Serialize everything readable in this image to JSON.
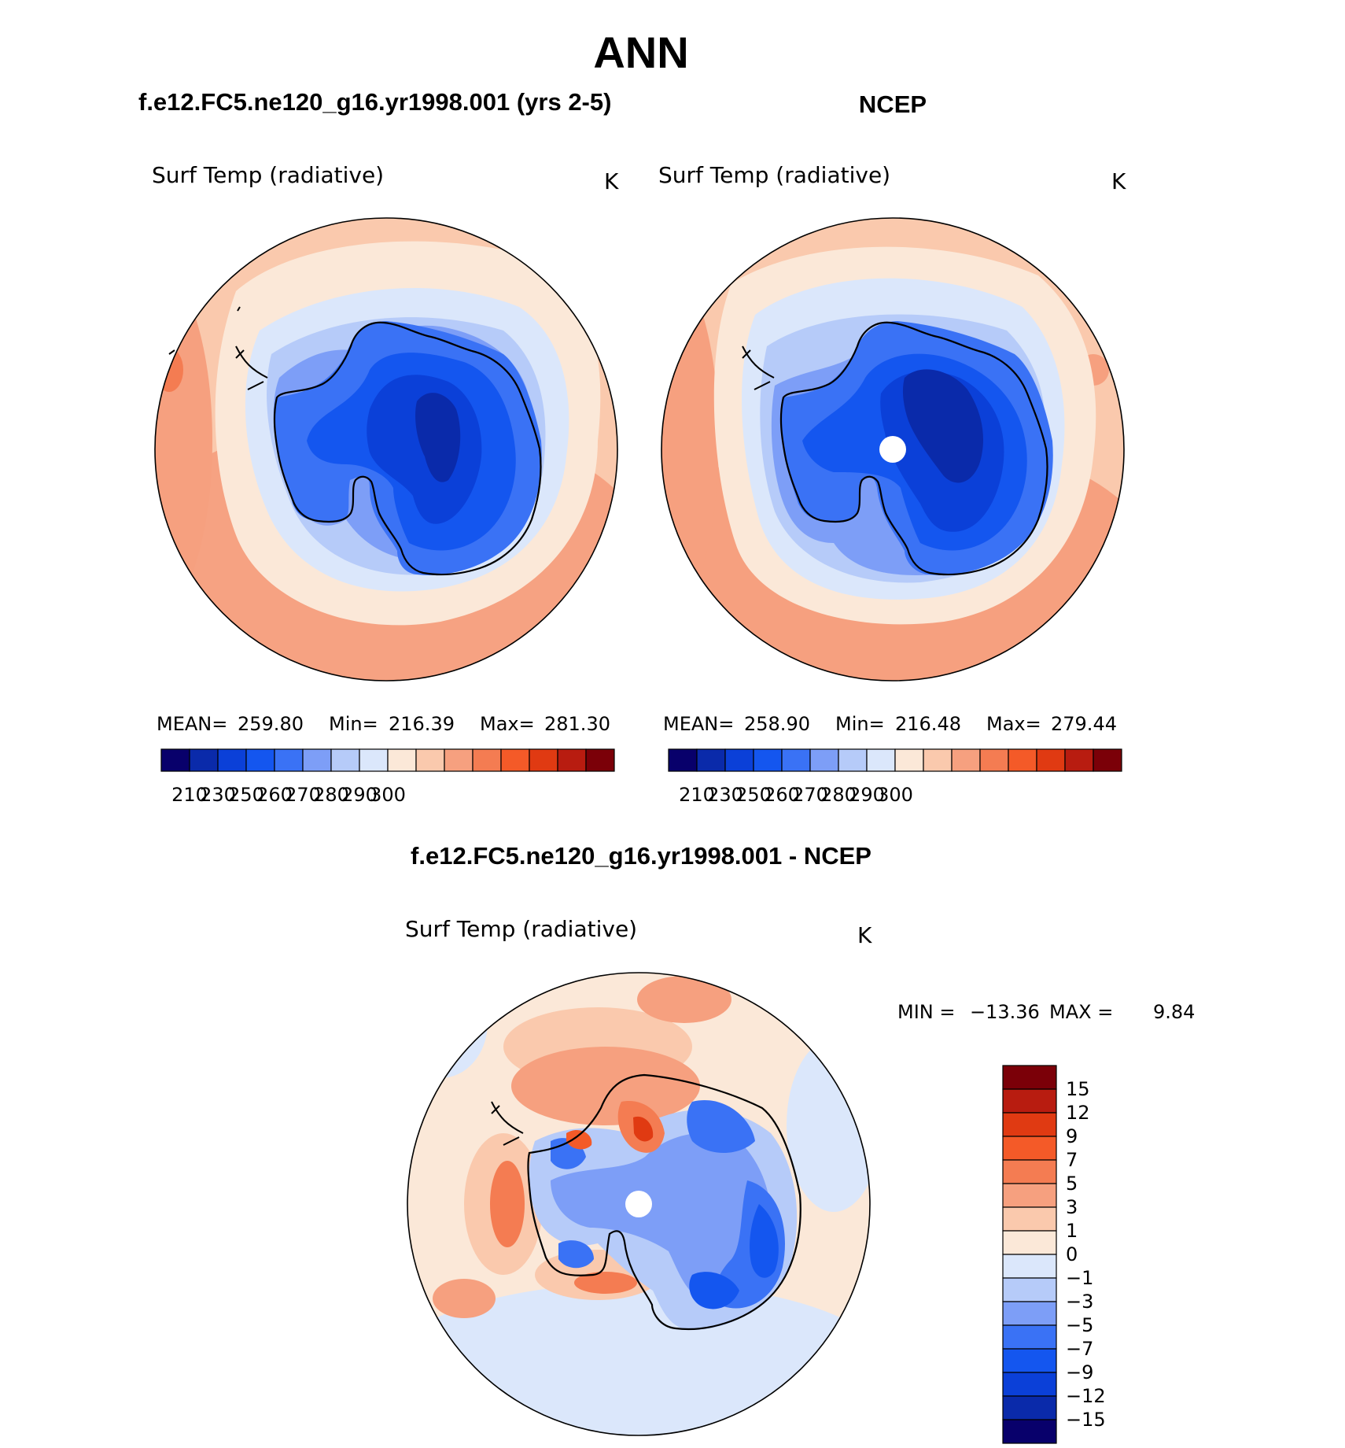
{
  "page": {
    "title": "ANN"
  },
  "colors": {
    "cb_abs": [
      "#08006b",
      "#0a2aaa",
      "#0b40d8",
      "#1456ef",
      "#3a72f5",
      "#7d9ef7",
      "#b6cbf9",
      "#dbe7fb",
      "#fbe8d8",
      "#fac9ad",
      "#f6a07f",
      "#f47c52",
      "#f45a28",
      "#e03a12",
      "#b81c10",
      "#7b0008"
    ],
    "cb_diff": [
      "#7b0008",
      "#b81c10",
      "#e03a12",
      "#f45a28",
      "#f47c52",
      "#f6a07f",
      "#fac9ad",
      "#fbe8d8",
      "#dbe7fb",
      "#b6cbf9",
      "#7d9ef7",
      "#3a72f5",
      "#1456ef",
      "#0b40d8",
      "#0a2aaa",
      "#08006b"
    ]
  },
  "chart_data": [
    {
      "type": "heatmap",
      "projection": "polar-stereographic-south",
      "header": "f.e12.FC5.ne120_g16.yr1998.001 (yrs 2-5)",
      "variable": "Surf Temp (radiative)",
      "units": "K",
      "stats": {
        "mean_label": "MEAN=",
        "mean": "259.80",
        "min_label": "Min=",
        "min": "216.39",
        "max_label": "Max=",
        "max": "281.30"
      },
      "levels": [
        205,
        210,
        220,
        230,
        240,
        250,
        255,
        260,
        265,
        270,
        275,
        280,
        285,
        290,
        295,
        300
      ],
      "colorbar_ticks": [
        "210",
        "230",
        "250",
        "260",
        "270",
        "280",
        "290",
        "300"
      ]
    },
    {
      "type": "heatmap",
      "projection": "polar-stereographic-south",
      "header": "NCEP",
      "variable": "Surf Temp (radiative)",
      "units": "K",
      "stats": {
        "mean_label": "MEAN=",
        "mean": "258.90",
        "min_label": "Min=",
        "min": "216.48",
        "max_label": "Max=",
        "max": "279.44"
      },
      "levels": [
        205,
        210,
        220,
        230,
        240,
        250,
        255,
        260,
        265,
        270,
        275,
        280,
        285,
        290,
        295,
        300
      ],
      "colorbar_ticks": [
        "210",
        "230",
        "250",
        "260",
        "270",
        "280",
        "290",
        "300"
      ]
    },
    {
      "type": "heatmap",
      "projection": "polar-stereographic-south",
      "header": "f.e12.FC5.ne120_g16.yr1998.001 - NCEP",
      "variable": "Surf Temp (radiative)",
      "units": "K",
      "stats": {
        "min_label": "MIN =",
        "min": "−13.36",
        "max_label": "MAX =",
        "max": "9.84"
      },
      "colorbar_ticks": [
        "15",
        "12",
        "9",
        "7",
        "5",
        "3",
        "1",
        "0",
        "−1",
        "−3",
        "−5",
        "−7",
        "−9",
        "−12",
        "−15"
      ]
    }
  ]
}
